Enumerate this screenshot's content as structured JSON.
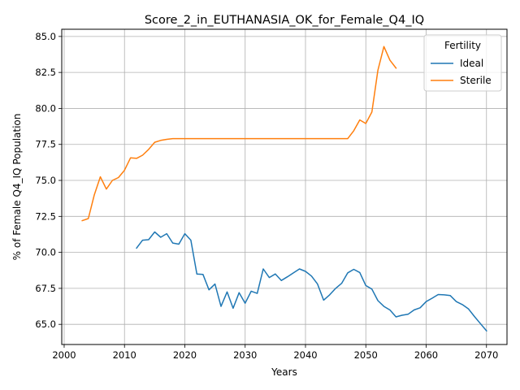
{
  "chart_data": {
    "type": "line",
    "title": "Score_2_in_EUTHANASIA_OK_for_Female_Q4_IQ",
    "xlabel": "Years",
    "ylabel": "% of Female Q4_IQ Population",
    "xlim": [
      1999.6,
      2073.4
    ],
    "ylim": [
      63.6,
      85.5
    ],
    "x_ticks": [
      2000,
      2010,
      2020,
      2030,
      2040,
      2050,
      2060,
      2070
    ],
    "y_ticks": [
      65.0,
      67.5,
      70.0,
      72.5,
      75.0,
      77.5,
      80.0,
      82.5,
      85.0
    ],
    "x_tick_labels": [
      "2000",
      "2010",
      "2020",
      "2030",
      "2040",
      "2050",
      "2060",
      "2070"
    ],
    "y_tick_labels": [
      "65.0",
      "67.5",
      "70.0",
      "72.5",
      "75.0",
      "77.5",
      "80.0",
      "82.5",
      "85.0"
    ],
    "grid": true,
    "legend": {
      "title": "Fertility",
      "placement": "top-right"
    },
    "series": [
      {
        "name": "Ideal",
        "color": "#1f77b4",
        "points": [
          [
            2012,
            70.3
          ],
          [
            2013,
            70.85
          ],
          [
            2014,
            70.88
          ],
          [
            2015,
            71.42
          ],
          [
            2016,
            71.05
          ],
          [
            2017,
            71.3
          ],
          [
            2018,
            70.65
          ],
          [
            2019,
            70.57
          ],
          [
            2020,
            71.3
          ],
          [
            2021,
            70.85
          ],
          [
            2022,
            68.5
          ],
          [
            2023,
            68.47
          ],
          [
            2024,
            67.4
          ],
          [
            2025,
            67.8
          ],
          [
            2026,
            66.25
          ],
          [
            2027,
            67.25
          ],
          [
            2028,
            66.12
          ],
          [
            2029,
            67.2
          ],
          [
            2030,
            66.47
          ],
          [
            2031,
            67.3
          ],
          [
            2032,
            67.15
          ],
          [
            2033,
            68.85
          ],
          [
            2034,
            68.25
          ],
          [
            2035,
            68.5
          ],
          [
            2036,
            68.05
          ],
          [
            2037,
            68.3
          ],
          [
            2038,
            68.57
          ],
          [
            2039,
            68.85
          ],
          [
            2040,
            68.68
          ],
          [
            2041,
            68.35
          ],
          [
            2042,
            67.8
          ],
          [
            2043,
            66.68
          ],
          [
            2044,
            67.05
          ],
          [
            2045,
            67.5
          ],
          [
            2046,
            67.85
          ],
          [
            2047,
            68.58
          ],
          [
            2048,
            68.82
          ],
          [
            2049,
            68.6
          ],
          [
            2050,
            67.7
          ],
          [
            2051,
            67.45
          ],
          [
            2052,
            66.65
          ],
          [
            2053,
            66.25
          ],
          [
            2054,
            66.0
          ],
          [
            2055,
            65.52
          ],
          [
            2056,
            65.63
          ],
          [
            2057,
            65.7
          ],
          [
            2058,
            66.0
          ],
          [
            2059,
            66.15
          ],
          [
            2060,
            66.58
          ],
          [
            2061,
            66.82
          ],
          [
            2062,
            67.07
          ],
          [
            2063,
            67.05
          ],
          [
            2064,
            67.0
          ],
          [
            2065,
            66.58
          ],
          [
            2066,
            66.37
          ],
          [
            2067,
            66.08
          ],
          [
            2068,
            65.55
          ],
          [
            2069,
            65.05
          ],
          [
            2070,
            64.55
          ]
        ]
      },
      {
        "name": "Sterile",
        "color": "#ff7f0e",
        "points": [
          [
            2003,
            72.2
          ],
          [
            2004,
            72.35
          ],
          [
            2005,
            74.0
          ],
          [
            2006,
            75.25
          ],
          [
            2007,
            74.4
          ],
          [
            2008,
            75.0
          ],
          [
            2009,
            75.2
          ],
          [
            2010,
            75.7
          ],
          [
            2011,
            76.57
          ],
          [
            2012,
            76.53
          ],
          [
            2013,
            76.75
          ],
          [
            2014,
            77.15
          ],
          [
            2015,
            77.65
          ],
          [
            2016,
            77.78
          ],
          [
            2017,
            77.85
          ],
          [
            2018,
            77.9
          ],
          [
            2019,
            77.9
          ],
          [
            2020,
            77.9
          ],
          [
            2025,
            77.9
          ],
          [
            2030,
            77.9
          ],
          [
            2035,
            77.9
          ],
          [
            2040,
            77.9
          ],
          [
            2045,
            77.9
          ],
          [
            2047,
            77.9
          ],
          [
            2048,
            78.45
          ],
          [
            2049,
            79.2
          ],
          [
            2050,
            78.95
          ],
          [
            2051,
            79.75
          ],
          [
            2052,
            82.65
          ],
          [
            2053,
            84.3
          ],
          [
            2054,
            83.35
          ],
          [
            2055,
            82.8
          ]
        ]
      }
    ]
  }
}
